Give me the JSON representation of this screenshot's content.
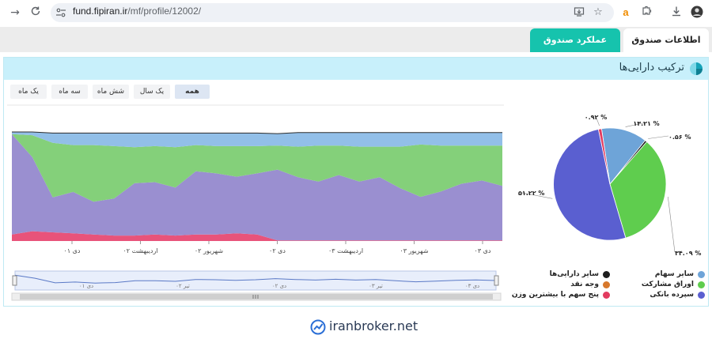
{
  "browser": {
    "url_host": "fund.fipiran.ir",
    "url_path": "/mf/profile/12002/",
    "icons": [
      "back-arrow-icon",
      "reload-icon",
      "tune-icon",
      "install-icon",
      "star-icon",
      "amazon-extension-icon",
      "extensions-icon",
      "download-icon",
      "profile-avatar"
    ]
  },
  "tabs": [
    {
      "label": "اطلاعات صندوق",
      "active": false
    },
    {
      "label": "عملکرد صندوق",
      "active": true
    }
  ],
  "panel": {
    "title": "ترکیب دارایی‌ها",
    "range_buttons": [
      {
        "label": "همه",
        "active": true
      },
      {
        "label": "یک سال",
        "active": false
      },
      {
        "label": "شش ماه",
        "active": false
      },
      {
        "label": "سه ماه",
        "active": false
      },
      {
        "label": "یک ماه",
        "active": false
      }
    ]
  },
  "chart_data": [
    {
      "type": "area",
      "stacked": true,
      "x_tick_labels": [
        "دی ۰۱",
        "اردیبهشت ۰۲",
        "شهریور ۰۲",
        "دی ۰۲",
        "اردیبهشت ۰۳",
        "شهریور ۰۳",
        "دی ۰۳"
      ],
      "navigator_labels": [
        "دی ۰۱",
        "تیر ۰۲",
        "دی ۰۲",
        "تیر ۰۳",
        "دی ۰۳"
      ],
      "ylim": [
        0,
        100
      ],
      "series": [
        {
          "color": "#e8537a",
          "values": [
            6,
            9,
            8,
            7,
            6,
            5,
            5,
            6,
            5,
            6,
            6,
            7,
            6,
            0.5,
            0.5,
            0.5,
            0.5,
            0.5,
            0.5,
            0.5,
            0.5,
            0.5,
            0.5,
            0.5,
            0.5
          ]
        },
        {
          "color": "#9a8fd0",
          "values": [
            92,
            68,
            32,
            38,
            30,
            34,
            48,
            48,
            44,
            58,
            56,
            52,
            56,
            65,
            58,
            54,
            60,
            54,
            58,
            48,
            40,
            45,
            52,
            55,
            50
          ]
        },
        {
          "color": "#84d07a",
          "values": [
            0,
            20,
            50,
            43,
            52,
            48,
            33,
            33,
            37,
            24,
            25,
            28,
            25,
            22,
            28,
            33,
            27,
            32,
            28,
            38,
            48,
            42,
            35,
            32,
            37
          ]
        },
        {
          "color": "#92bfe8",
          "values": [
            2,
            3,
            9,
            11,
            11,
            12,
            13,
            12,
            13,
            11,
            12,
            12,
            12,
            11,
            13,
            12,
            12,
            13,
            13,
            13,
            11,
            12,
            12,
            12,
            12
          ]
        }
      ]
    },
    {
      "type": "pie",
      "slices": [
        {
          "name": "سایر سهام",
          "value": 13.21,
          "label": "۱۳.۲۱ %",
          "color": "#6ea4d8"
        },
        {
          "name": "سایر دارایی‌ها",
          "value": 0.56,
          "label": "۰.۵۶ %",
          "color": "#1e1e1e"
        },
        {
          "name": "اوراق مشارکت",
          "value": 34.09,
          "label": "۳۴.۰۹ %",
          "color": "#5fcd4e"
        },
        {
          "name": "سپرده بانکی",
          "value": 51.22,
          "label": "۵۱.۲۲ %",
          "color": "#5a5fd0"
        },
        {
          "name": "وجه نقد",
          "value": 0,
          "label": "",
          "color": "#d7782c"
        },
        {
          "name": "پنج سهم با بیشترین وزن",
          "value": 0.92,
          "label": "۰.۹۲ %",
          "color": "#e23b5f"
        }
      ]
    }
  ],
  "legend": [
    {
      "label": "سایر سهام",
      "color": "#6ea4d8"
    },
    {
      "label": "سایر دارایی‌ها",
      "color": "#1e1e1e"
    },
    {
      "label": "اوراق مشارکت",
      "color": "#5fcd4e"
    },
    {
      "label": "وجه نقد",
      "color": "#d7782c"
    },
    {
      "label": "سپرده بانکی",
      "color": "#5a5fd0"
    },
    {
      "label": "پنج سهم با بیشترین وزن",
      "color": "#e23b5f"
    }
  ],
  "footer": {
    "brand": "iranbroker.net"
  }
}
